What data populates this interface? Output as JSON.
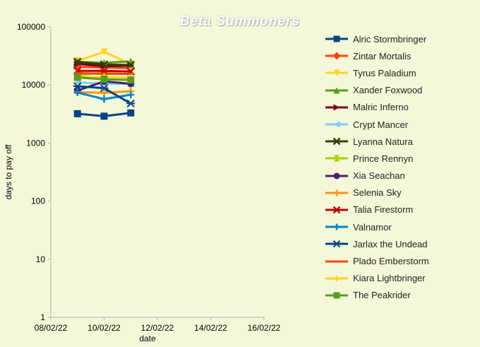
{
  "chart_data": {
    "type": "line",
    "title": "Beta Summoners",
    "xlabel": "date",
    "ylabel": "days to pay off",
    "y_scale": "log",
    "ylim": [
      1,
      100000
    ],
    "y_ticks": [
      "1",
      "10",
      "100",
      "1000",
      "10000",
      "100000"
    ],
    "xlim": [
      "08/02/22",
      "16/02/22"
    ],
    "x_ticks": [
      "08/02/22",
      "10/02/22",
      "12/02/22",
      "14/02/22",
      "16/02/22"
    ],
    "x": [
      "09/02/22",
      "10/02/22",
      "11/02/22"
    ],
    "grid": false,
    "legend_position": "right",
    "series": [
      {
        "name": "Alric Stormbringer",
        "color": "#004586",
        "marker": "square",
        "values": [
          3200,
          2900,
          3300
        ]
      },
      {
        "name": "Zintar Mortalis",
        "color": "#ff420e",
        "marker": "diamond",
        "values": [
          20500,
          20000,
          19500
        ]
      },
      {
        "name": "Tyrus Paladium",
        "color": "#ffd320",
        "marker": "triangle-down",
        "values": [
          26000,
          37000,
          23000
        ]
      },
      {
        "name": "Xander Foxwood",
        "color": "#579d1c",
        "marker": "triangle-up",
        "values": [
          25000,
          24000,
          25500
        ]
      },
      {
        "name": "Malric Inferno",
        "color": "#7e0021",
        "marker": "triangle-right",
        "values": [
          23000,
          21000,
          21500
        ]
      },
      {
        "name": "Crypt Mancer",
        "color": "#83caff",
        "marker": "triangle-left",
        "values": [
          11000,
          10500,
          10500
        ]
      },
      {
        "name": "Lyanna Natura",
        "color": "#314004",
        "marker": "x",
        "values": [
          25000,
          22500,
          22000
        ]
      },
      {
        "name": "Prince Rennyn",
        "color": "#aecf00",
        "marker": "hourglass",
        "values": [
          14500,
          16500,
          17500
        ]
      },
      {
        "name": "Xia Seachan",
        "color": "#4b1f6f",
        "marker": "circle",
        "values": [
          8000,
          11500,
          10500
        ]
      },
      {
        "name": "Selenia Sky",
        "color": "#ff950e",
        "marker": "plus",
        "values": [
          7500,
          7300,
          7800
        ]
      },
      {
        "name": "Talia Firestorm",
        "color": "#c5000b",
        "marker": "x",
        "values": [
          17500,
          17500,
          17000
        ]
      },
      {
        "name": "Valnamor",
        "color": "#0084d1",
        "marker": "plus",
        "values": [
          7400,
          5700,
          6800
        ]
      },
      {
        "name": "Jarlax the Undead",
        "color": "#004586",
        "marker": "star",
        "values": [
          9500,
          8800,
          4800
        ]
      },
      {
        "name": "Plado Emberstorm",
        "color": "#ff420e",
        "marker": "dash",
        "values": [
          16000,
          15500,
          15500
        ]
      },
      {
        "name": "Kiara Lightbringer",
        "color": "#ffd320",
        "marker": "plus",
        "values": [
          13500,
          13800,
          13200
        ]
      },
      {
        "name": "The Peakrider",
        "color": "#579d1c",
        "marker": "square",
        "values": [
          13500,
          12500,
          12200
        ]
      }
    ]
  }
}
